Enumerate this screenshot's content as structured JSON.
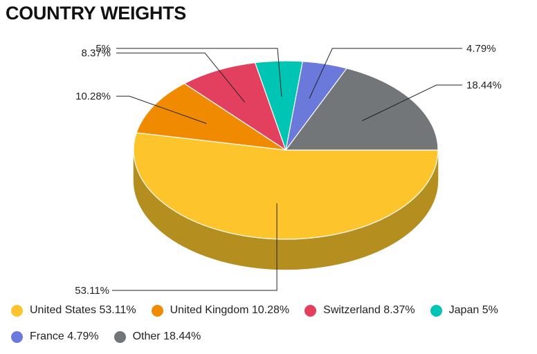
{
  "title": "COUNTRY WEIGHTS",
  "chart_data": {
    "type": "pie",
    "style": "3d",
    "title": "COUNTRY WEIGHTS",
    "legend_position": "bottom",
    "slices": [
      {
        "name": "United States",
        "value": 53.11,
        "label": "53.11%",
        "legend": "United States 53.11%",
        "color": "#FDC52B",
        "side_color": "#B58E20"
      },
      {
        "name": "United Kingdom",
        "value": 10.28,
        "label": "10.28%",
        "legend": "United Kingdom 10.28%",
        "color": "#F08A00",
        "side_color": "#A96100"
      },
      {
        "name": "Switzerland",
        "value": 8.37,
        "label": "8.37%",
        "legend": "Switzerland 8.37%",
        "color": "#E3405F",
        "side_color": "#A02D43"
      },
      {
        "name": "Japan",
        "value": 5,
        "label": "5%",
        "legend": "Japan 5%",
        "color": "#00C5B5",
        "side_color": "#008A80"
      },
      {
        "name": "France",
        "value": 4.79,
        "label": "4.79%",
        "legend": "France 4.79%",
        "color": "#6B79DA",
        "side_color": "#4B559A"
      },
      {
        "name": "Other",
        "value": 18.44,
        "label": "18.44%",
        "legend": "Other 18.44%",
        "color": "#737678",
        "side_color": "#515355"
      }
    ]
  }
}
